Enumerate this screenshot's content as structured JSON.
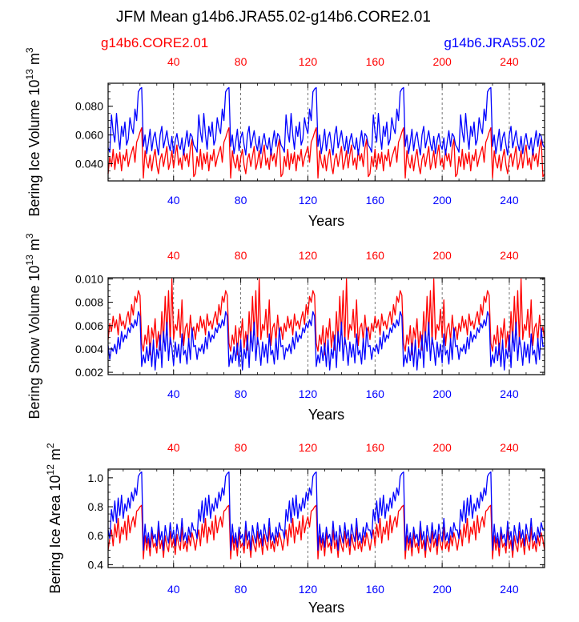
{
  "page": {
    "title": "JFM Mean g14b6.JRA55.02-g14b6.CORE2.01",
    "left_label": "g14b6.CORE2.01",
    "right_label": "g14b6.JRA55.02"
  },
  "colors": {
    "core": "#ff0000",
    "jra": "#0000ff",
    "axis": "#000000",
    "grid": "#555555"
  },
  "chart_data": [
    {
      "type": "line",
      "id": "ice-volume",
      "ylabel": "Bering Ice Volume 10",
      "ylabel_exp": "13",
      "ylabel_unit": " m",
      "ylabel_unit_exp": "3",
      "xlabel": "Years",
      "xlim": [
        1,
        261
      ],
      "ylim": [
        0.028,
        0.096
      ],
      "yticks": [
        0.04,
        0.06,
        0.08
      ],
      "ytick_labels": [
        "0.040",
        "0.060",
        "0.080"
      ],
      "yminor": 0.005,
      "xticks": [
        40,
        80,
        120,
        160,
        200,
        240
      ],
      "xtick_labels": [
        "40",
        "80",
        "120",
        "160",
        "200",
        "240"
      ],
      "gridlines": [
        40,
        80,
        120,
        160,
        200,
        240
      ],
      "series": [
        {
          "name": "g14b6.CORE2.01",
          "color": "#ff0000",
          "cycle": [
            0.033,
            0.045,
            0.038,
            0.05,
            0.036,
            0.047,
            0.04,
            0.048,
            0.035,
            0.046,
            0.042,
            0.05,
            0.038,
            0.044,
            0.048,
            0.052,
            0.041,
            0.055,
            0.058,
            0.062,
            0.065,
            0.03,
            0.049,
            0.041,
            0.037,
            0.046,
            0.035,
            0.044,
            0.05,
            0.039,
            0.033,
            0.043,
            0.047,
            0.038,
            0.045,
            0.052,
            0.036,
            0.041,
            0.049,
            0.037,
            0.046,
            0.053,
            0.039,
            0.044,
            0.036,
            0.05,
            0.042,
            0.047,
            0.038,
            0.051,
            0.057,
            0.031
          ]
        },
        {
          "name": "g14b6.JRA55.02",
          "color": "#0000ff",
          "cycle": [
            0.051,
            0.048,
            0.074,
            0.062,
            0.055,
            0.075,
            0.06,
            0.05,
            0.066,
            0.059,
            0.069,
            0.053,
            0.057,
            0.072,
            0.065,
            0.061,
            0.078,
            0.07,
            0.09,
            0.092,
            0.093,
            0.052,
            0.06,
            0.047,
            0.055,
            0.064,
            0.049,
            0.058,
            0.062,
            0.053,
            0.046,
            0.06,
            0.066,
            0.051,
            0.057,
            0.063,
            0.054,
            0.049,
            0.059,
            0.047,
            0.056,
            0.061,
            0.053,
            0.05,
            0.058,
            0.046,
            0.055,
            0.063,
            0.052,
            0.061,
            0.059,
            0.053
          ]
        }
      ]
    },
    {
      "type": "line",
      "id": "snow-volume",
      "ylabel": "Bering Snow Volume 10",
      "ylabel_exp": "13",
      "ylabel_unit": " m",
      "ylabel_unit_exp": "3",
      "xlabel": "Years",
      "xlim": [
        1,
        261
      ],
      "ylim": [
        0.0018,
        0.0101
      ],
      "yticks": [
        0.002,
        0.004,
        0.006,
        0.008,
        0.01
      ],
      "ytick_labels": [
        "0.002",
        "0.004",
        "0.006",
        "0.008",
        "0.010"
      ],
      "yminor": 0.0005,
      "xticks": [
        40,
        80,
        120,
        160,
        200,
        240
      ],
      "xtick_labels": [
        "40",
        "80",
        "120",
        "160",
        "200",
        "240"
      ],
      "gridlines": [
        40,
        80,
        120,
        160,
        200,
        240
      ],
      "series": [
        {
          "name": "g14b6.CORE2.01",
          "color": "#ff0000",
          "cycle": [
            0.0048,
            0.0062,
            0.0055,
            0.0068,
            0.0058,
            0.0065,
            0.0052,
            0.007,
            0.006,
            0.0064,
            0.0057,
            0.0066,
            0.0072,
            0.0061,
            0.0078,
            0.0069,
            0.0085,
            0.008,
            0.009,
            0.0086,
            0.0045,
            0.0038,
            0.0052,
            0.0044,
            0.006,
            0.0035,
            0.0058,
            0.0049,
            0.0066,
            0.0041,
            0.0055,
            0.0039,
            0.0072,
            0.0046,
            0.0085,
            0.0052,
            0.009,
            0.0044,
            0.01,
            0.0048,
            0.0061,
            0.0056,
            0.0074,
            0.005,
            0.0082,
            0.0043,
            0.0058,
            0.0062,
            0.0047,
            0.0069,
            0.0053,
            0.0059
          ]
        },
        {
          "name": "g14b6.JRA55.02",
          "color": "#0000ff",
          "cycle": [
            0.0043,
            0.0031,
            0.0041,
            0.0038,
            0.0044,
            0.0036,
            0.005,
            0.004,
            0.0055,
            0.0046,
            0.0052,
            0.0049,
            0.0058,
            0.0054,
            0.0062,
            0.0058,
            0.0065,
            0.006,
            0.0072,
            0.0068,
            0.0025,
            0.0035,
            0.0028,
            0.0042,
            0.003,
            0.0045,
            0.0025,
            0.0048,
            0.0022,
            0.004,
            0.0032,
            0.0052,
            0.0024,
            0.0055,
            0.0038,
            0.0063,
            0.003,
            0.005,
            0.0041,
            0.0026,
            0.0046,
            0.0033,
            0.0044,
            0.0028,
            0.0053,
            0.0035,
            0.0039,
            0.0027,
            0.0049,
            0.0031,
            0.0058,
            0.0042
          ]
        }
      ]
    },
    {
      "type": "line",
      "id": "ice-area",
      "ylabel": "Bering Ice Area 10",
      "ylabel_exp": "12",
      "ylabel_unit": " m",
      "ylabel_unit_exp": "2",
      "xlabel": "Years",
      "xlim": [
        1,
        261
      ],
      "ylim": [
        0.38,
        1.06
      ],
      "yticks": [
        0.4,
        0.6,
        0.8,
        1.0
      ],
      "ytick_labels": [
        "0.4",
        "0.6",
        "0.8",
        "1.0"
      ],
      "yminor": 0.05,
      "xticks": [
        40,
        80,
        120,
        160,
        200,
        240
      ],
      "xtick_labels": [
        "40",
        "80",
        "120",
        "160",
        "200",
        "240"
      ],
      "gridlines": [
        40,
        80,
        120,
        160,
        200,
        240
      ],
      "series": [
        {
          "name": "g14b6.CORE2.01",
          "color": "#ff0000",
          "cycle": [
            0.5,
            0.58,
            0.64,
            0.53,
            0.68,
            0.59,
            0.72,
            0.55,
            0.66,
            0.61,
            0.7,
            0.57,
            0.74,
            0.62,
            0.69,
            0.73,
            0.66,
            0.77,
            0.78,
            0.8,
            0.81,
            0.44,
            0.6,
            0.5,
            0.58,
            0.46,
            0.62,
            0.52,
            0.55,
            0.48,
            0.64,
            0.51,
            0.57,
            0.45,
            0.6,
            0.53,
            0.49,
            0.63,
            0.52,
            0.58,
            0.47,
            0.61,
            0.54,
            0.5,
            0.66,
            0.51,
            0.56,
            0.49,
            0.6,
            0.53,
            0.62,
            0.57
          ]
        },
        {
          "name": "g14b6.JRA55.02",
          "color": "#0000ff",
          "cycle": [
            0.64,
            0.58,
            0.78,
            0.7,
            0.84,
            0.69,
            0.86,
            0.74,
            0.88,
            0.72,
            0.82,
            0.77,
            0.86,
            0.79,
            0.9,
            0.84,
            0.93,
            0.88,
            1.01,
            1.03,
            1.04,
            0.5,
            0.68,
            0.55,
            0.62,
            0.52,
            0.66,
            0.58,
            0.61,
            0.53,
            0.7,
            0.57,
            0.63,
            0.5,
            0.67,
            0.6,
            0.55,
            0.69,
            0.58,
            0.64,
            0.53,
            0.68,
            0.61,
            0.56,
            0.72,
            0.57,
            0.62,
            0.55,
            0.66,
            0.59,
            0.69,
            0.64
          ]
        }
      ]
    }
  ]
}
